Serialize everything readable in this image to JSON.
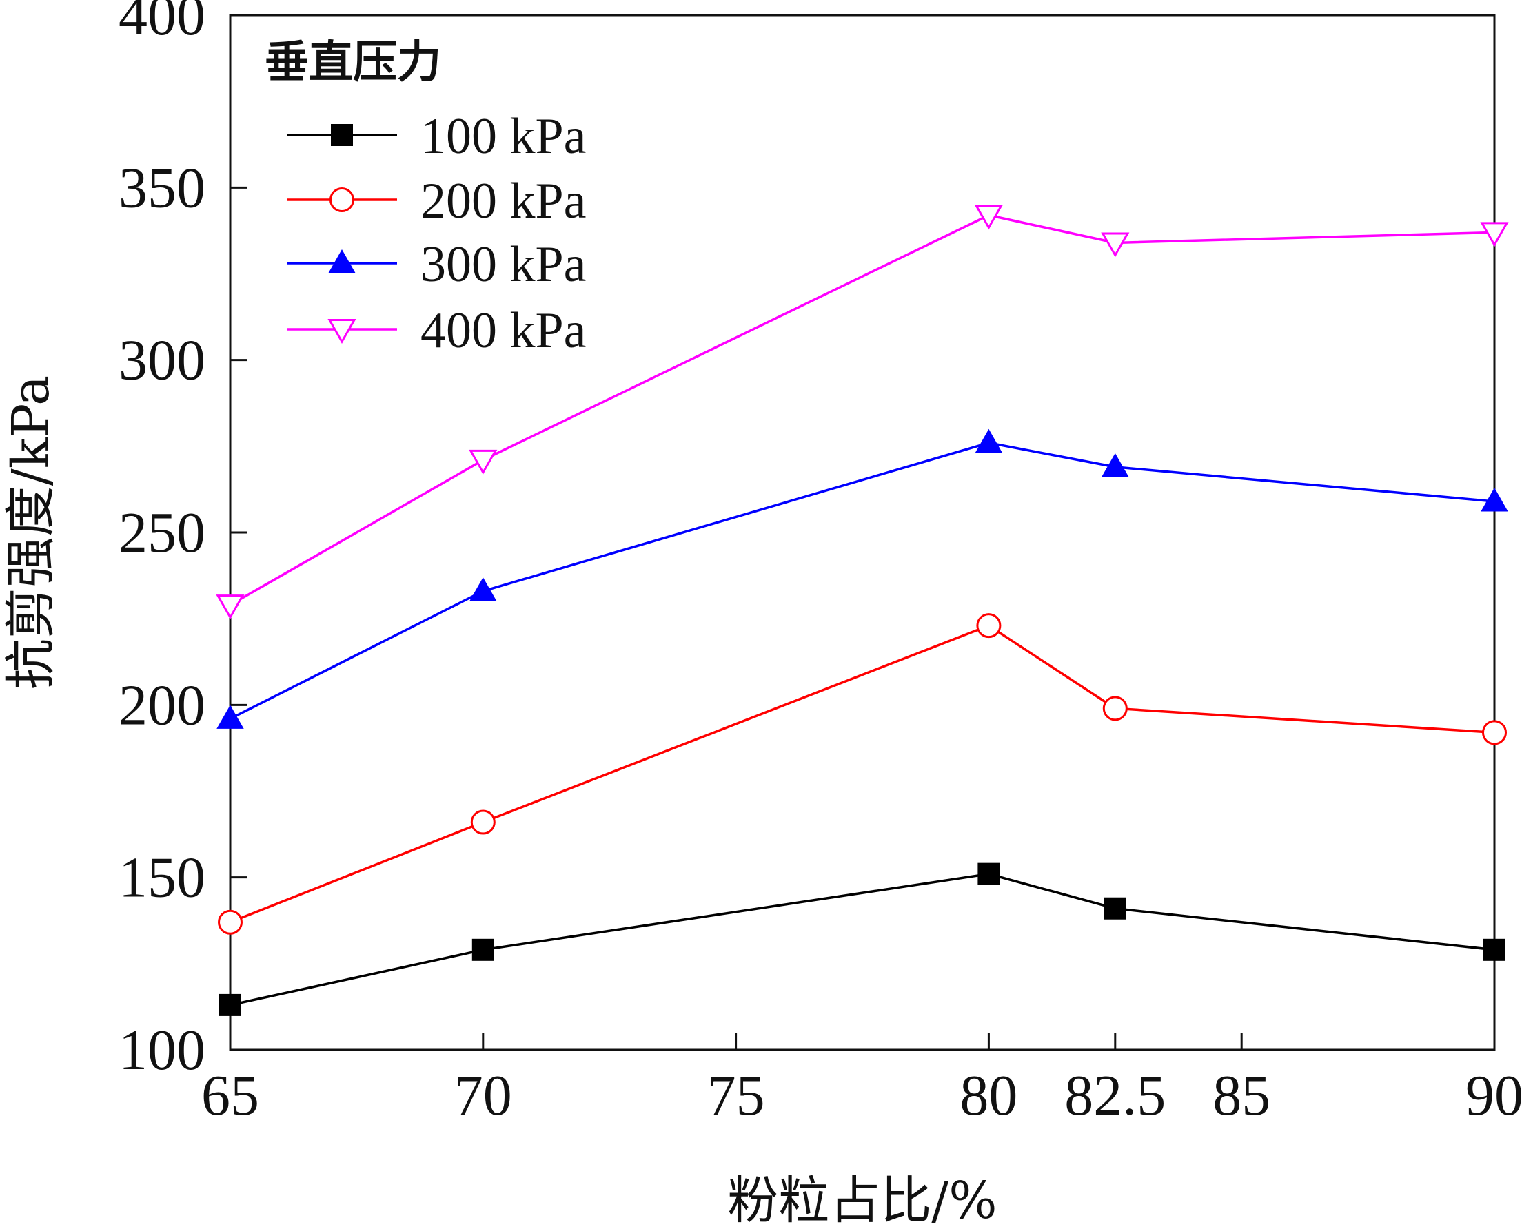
{
  "chart_data": {
    "type": "line",
    "xlabel": "粉粒占比/%",
    "ylabel": "抗剪强度/kPa",
    "xlim": [
      65,
      90
    ],
    "ylim": [
      100,
      400
    ],
    "x_ticks": [
      65,
      70,
      75,
      80,
      82.5,
      85,
      90
    ],
    "x_tick_labels": [
      "65",
      "70",
      "75",
      "80",
      "82.5",
      "85",
      "90"
    ],
    "y_ticks": [
      100,
      150,
      200,
      250,
      300,
      350,
      400
    ],
    "y_tick_labels": [
      "100",
      "150",
      "200",
      "250",
      "300",
      "350",
      "400"
    ],
    "grid": false,
    "legend": {
      "title": "垂直压力",
      "placement": "top-left"
    },
    "x": [
      65,
      70,
      80,
      82.5,
      90
    ],
    "series": [
      {
        "name": "100 kPa",
        "color": "#000000",
        "marker": "filled-square",
        "values": [
          113,
          129,
          151,
          141,
          129
        ]
      },
      {
        "name": "200 kPa",
        "color": "#ff0000",
        "marker": "open-circle",
        "values": [
          137,
          166,
          223,
          199,
          192
        ]
      },
      {
        "name": "300 kPa",
        "color": "#0000ff",
        "marker": "filled-triangle-up",
        "values": [
          196,
          233,
          276,
          269,
          259
        ]
      },
      {
        "name": "400 kPa",
        "color": "#ff00ff",
        "marker": "open-triangle-down",
        "values": [
          229,
          271,
          342,
          334,
          337
        ]
      }
    ]
  }
}
